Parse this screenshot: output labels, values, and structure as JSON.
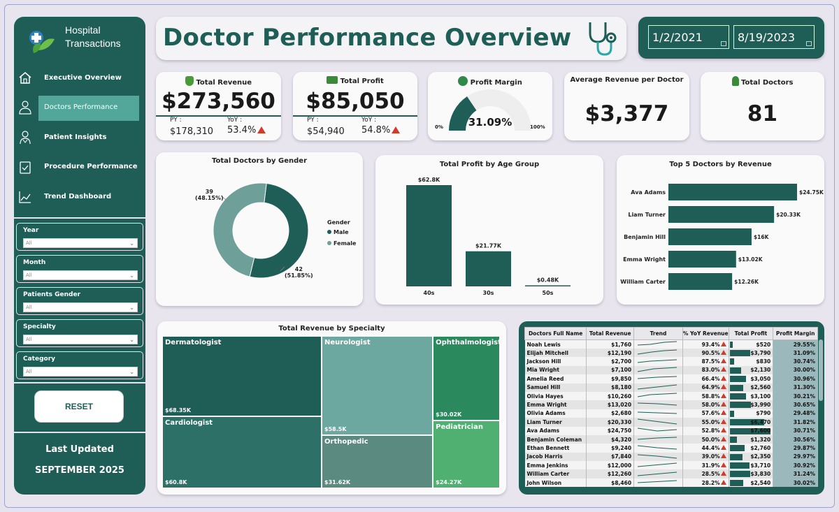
{
  "app": {
    "logo_lines": [
      "Hospital",
      "Transactions"
    ],
    "title": "Doctor Performance Overview"
  },
  "sidebar": {
    "nav": [
      {
        "label": "Executive Overview",
        "icon": "home-icon"
      },
      {
        "label": "Doctors Performance",
        "icon": "doctor-icon",
        "active": true
      },
      {
        "label": "Patient Insights",
        "icon": "patient-icon"
      },
      {
        "label": "Procedure Performance",
        "icon": "clipboard-icon"
      },
      {
        "label": "Trend Dashboard",
        "icon": "trend-chart-icon"
      }
    ],
    "slicers": [
      {
        "label": "Year",
        "value": "All"
      },
      {
        "label": "Month",
        "value": "All"
      },
      {
        "label": "Patients Gender",
        "value": "All"
      },
      {
        "label": "Specialty",
        "value": "All"
      },
      {
        "label": "Category",
        "value": "All"
      }
    ],
    "reset_label": "RESET",
    "updated_label": "Last Updated",
    "updated_value": "SEPTEMBER 2025"
  },
  "dates": {
    "start": "1/2/2021",
    "end": "8/19/2023"
  },
  "kpis": {
    "revenue": {
      "title": "Total Revenue",
      "value": "$273,560",
      "py_label": "PY :",
      "py_value": "$178,310",
      "yoy_label": "YoY :",
      "yoy_value": "53.4%"
    },
    "profit": {
      "title": "Total Profit",
      "value": "$85,050",
      "py_label": "PY :",
      "py_value": "$54,940",
      "yoy_label": "YoY :",
      "yoy_value": "54.8%"
    },
    "margin": {
      "title": "Profit Margin",
      "value": "31.09%",
      "min": "0%",
      "max": "100%",
      "fraction": 0.3109
    },
    "avg_revenue": {
      "title": "Average Revenue per Doctor",
      "value": "$3,377"
    },
    "doctors": {
      "title": "Total Doctors",
      "value": "81"
    }
  },
  "chart_data": [
    {
      "type": "pie",
      "title": "Total Doctors by Gender",
      "legend_title": "Gender",
      "legend_position": "right",
      "slices": [
        {
          "name": "Male",
          "value": 42,
          "label": "42",
          "pct": "(51.85%)",
          "color": "#1e5e56"
        },
        {
          "name": "Female",
          "value": 39,
          "label": "39",
          "pct": "(48.15%)",
          "color": "#6e9f98"
        }
      ]
    },
    {
      "type": "bar",
      "title": "Total Profit by Age Group",
      "categories": [
        "40s",
        "30s",
        "50s"
      ],
      "values": [
        62.8,
        21.77,
        0.48
      ],
      "labels": [
        "$62.8K",
        "$21.77K",
        "$0.48K"
      ],
      "ylim": [
        0,
        62.8
      ]
    },
    {
      "type": "bar",
      "orientation": "horizontal",
      "title": "Top 5 Doctors by Revenue",
      "categories": [
        "Ava Adams",
        "Liam Turner",
        "Benjamin Hill",
        "Emma Wright",
        "William Carter"
      ],
      "values": [
        24.75,
        20.33,
        16,
        13.02,
        12.26
      ],
      "labels": [
        "$24.75K",
        "$20.33K",
        "$16K",
        "$13.02K",
        "$12.26K"
      ],
      "xlim": [
        0,
        24.75
      ]
    },
    {
      "type": "treemap",
      "title": "Total Revenue by Specialty",
      "items": [
        {
          "name": "Dermatologist",
          "value": 68.35,
          "label": "$68.35K",
          "color": "#1e5e56"
        },
        {
          "name": "Cardiologist",
          "value": 60.8,
          "label": "$60.8K",
          "color": "#2d7068"
        },
        {
          "name": "Neurologist",
          "value": 58.5,
          "label": "$58.5K",
          "color": "#6da8a0"
        },
        {
          "name": "Orthopedic",
          "value": 31.62,
          "label": "$31.62K",
          "color": "#5a8a80"
        },
        {
          "name": "Ophthalmologist",
          "value": 30.02,
          "label": "$30.02K",
          "color": "#2a8a5e"
        },
        {
          "name": "Pediatrician",
          "value": 24.27,
          "label": "$24.27K",
          "color": "#4fb071"
        }
      ]
    }
  ],
  "table": {
    "headers": [
      "Doctors Full Name",
      "Total Revenue",
      "Trend",
      "% YoY Revenue",
      "Total Profit",
      "Profit Margin"
    ],
    "rows": [
      {
        "name": "Noah Lewis",
        "revenue": "$1,760",
        "yoy": "93.4%",
        "profit": "$520",
        "profit_val": 520,
        "margin": "29.55%"
      },
      {
        "name": "Elijah Mitchell",
        "revenue": "$12,190",
        "yoy": "90.5%",
        "profit": "$3,790",
        "profit_val": 3790,
        "margin": "31.09%"
      },
      {
        "name": "Jackson Hill",
        "revenue": "$2,700",
        "yoy": "87.5%",
        "profit": "$830",
        "profit_val": 830,
        "margin": "30.74%"
      },
      {
        "name": "Mia Wright",
        "revenue": "$7,100",
        "yoy": "83.0%",
        "profit": "$2,130",
        "profit_val": 2130,
        "margin": "30.00%"
      },
      {
        "name": "Amelia Reed",
        "revenue": "$9,850",
        "yoy": "66.4%",
        "profit": "$3,050",
        "profit_val": 3050,
        "margin": "30.96%"
      },
      {
        "name": "Samuel Hill",
        "revenue": "$8,180",
        "yoy": "64.9%",
        "profit": "$2,560",
        "profit_val": 2560,
        "margin": "31.30%"
      },
      {
        "name": "Olivia Hayes",
        "revenue": "$10,260",
        "yoy": "58.8%",
        "profit": "$3,100",
        "profit_val": 3100,
        "margin": "30.21%"
      },
      {
        "name": "Emma Wright",
        "revenue": "$13,020",
        "yoy": "58.0%",
        "profit": "$3,990",
        "profit_val": 3990,
        "margin": "30.65%"
      },
      {
        "name": "Olivia Adams",
        "revenue": "$2,680",
        "yoy": "57.6%",
        "profit": "$790",
        "profit_val": 790,
        "margin": "29.48%"
      },
      {
        "name": "Liam Turner",
        "revenue": "$20,330",
        "yoy": "55.0%",
        "profit": "$6,470",
        "profit_val": 6470,
        "margin": "31.82%"
      },
      {
        "name": "Ava Adams",
        "revenue": "$24,750",
        "yoy": "52.8%",
        "profit": "$7,600",
        "profit_val": 7600,
        "margin": "30.71%"
      },
      {
        "name": "Benjamin Coleman",
        "revenue": "$4,320",
        "yoy": "50.0%",
        "profit": "$1,320",
        "profit_val": 1320,
        "margin": "30.56%"
      },
      {
        "name": "Ethan Bennett",
        "revenue": "$9,240",
        "yoy": "44.4%",
        "profit": "$2,760",
        "profit_val": 2760,
        "margin": "29.87%"
      },
      {
        "name": "Jacob Harris",
        "revenue": "$7,840",
        "yoy": "39.0%",
        "profit": "$2,350",
        "profit_val": 2350,
        "margin": "29.97%"
      },
      {
        "name": "Emma Jenkins",
        "revenue": "$12,000",
        "yoy": "31.9%",
        "profit": "$3,710",
        "profit_val": 3710,
        "margin": "30.92%"
      },
      {
        "name": "William Carter",
        "revenue": "$12,260",
        "yoy": "28.5%",
        "profit": "$3,830",
        "profit_val": 3830,
        "margin": "31.24%"
      },
      {
        "name": "John Wilson",
        "revenue": "$8,460",
        "yoy": "28.2%",
        "profit": "$2,540",
        "profit_val": 2540,
        "margin": "30.02%"
      }
    ]
  }
}
